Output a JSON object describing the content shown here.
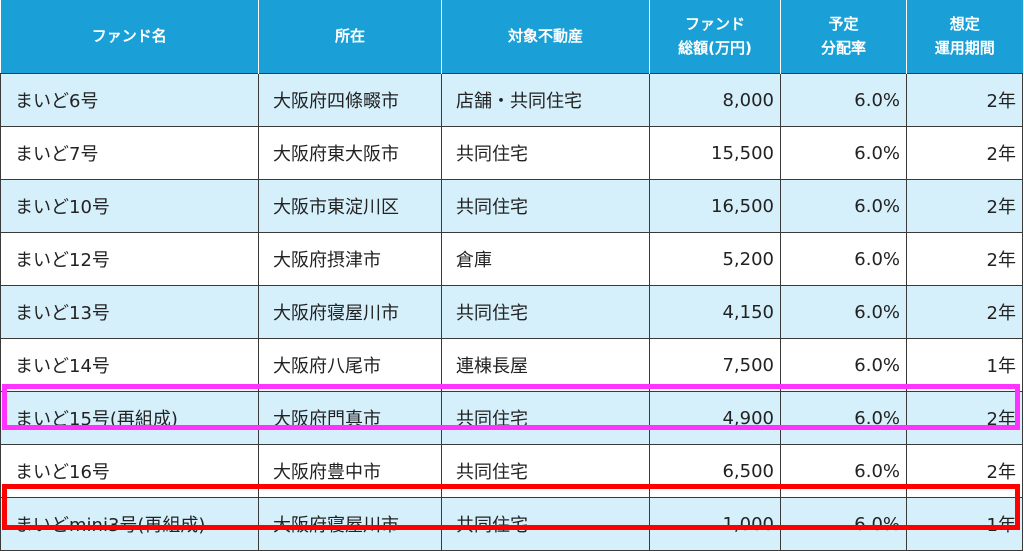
{
  "headers": {
    "fund_name": "ファンド名",
    "location": "所在",
    "property": "対象不動産",
    "total_line1": "ファンド",
    "total_line2": "総額(万円)",
    "rate_line1": "予定",
    "rate_line2": "分配率",
    "period_line1": "想定",
    "period_line2": "運用期間"
  },
  "rows": [
    {
      "name": "まいど6号",
      "location": "大阪府四條畷市",
      "property": "店舗・共同住宅",
      "total": "8,000",
      "rate": "6.0%",
      "period": "2年"
    },
    {
      "name": "まいど7号",
      "location": "大阪府東大阪市",
      "property": "共同住宅",
      "total": "15,500",
      "rate": "6.0%",
      "period": "2年"
    },
    {
      "name": "まいど10号",
      "location": "大阪市東淀川区",
      "property": "共同住宅",
      "total": "16,500",
      "rate": "6.0%",
      "period": "2年"
    },
    {
      "name": "まいど12号",
      "location": "大阪府摂津市",
      "property": "倉庫",
      "total": "5,200",
      "rate": "6.0%",
      "period": "2年"
    },
    {
      "name": "まいど13号",
      "location": "大阪府寝屋川市",
      "property": "共同住宅",
      "total": "4,150",
      "rate": "6.0%",
      "period": "2年"
    },
    {
      "name": "まいど14号",
      "location": "大阪府八尾市",
      "property": "連棟長屋",
      "total": "7,500",
      "rate": "6.0%",
      "period": "1年"
    },
    {
      "name": "まいど15号(再組成)",
      "location": "大阪府門真市",
      "property": "共同住宅",
      "total": "4,900",
      "rate": "6.0%",
      "period": "2年"
    },
    {
      "name": "まいど16号",
      "location": "大阪府豊中市",
      "property": "共同住宅",
      "total": "6,500",
      "rate": "6.0%",
      "period": "2年"
    },
    {
      "name": "まいどmini3号(再組成)",
      "location": "大阪府寝屋川市",
      "property": "共同住宅",
      "total": "1,000",
      "rate": "6.0%",
      "period": "1年"
    }
  ],
  "highlight_colors": {
    "magenta": "#ff33ff",
    "red": "#ff0000"
  }
}
